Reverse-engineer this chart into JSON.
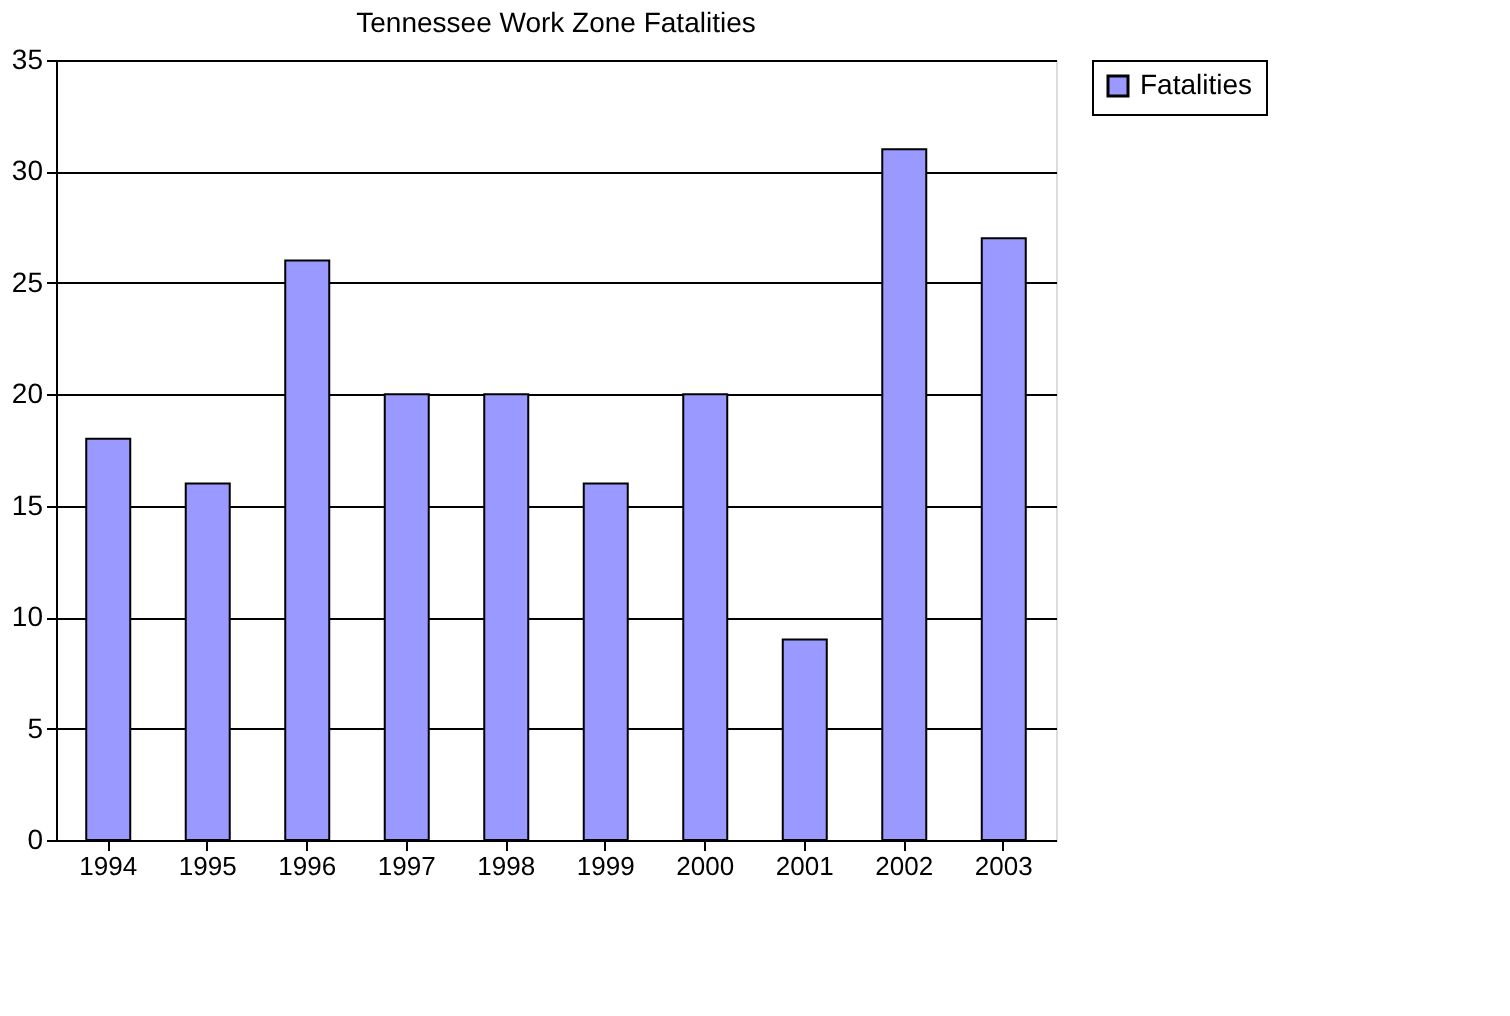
{
  "chart_data": {
    "type": "bar",
    "title": "Tennessee Work Zone Fatalities",
    "categories": [
      "1994",
      "1995",
      "1996",
      "1997",
      "1998",
      "1999",
      "2000",
      "2001",
      "2002",
      "2003"
    ],
    "series": [
      {
        "name": "Fatalities",
        "color": "#9999ff",
        "values": [
          18,
          16,
          26,
          20,
          20,
          16,
          20,
          9,
          31,
          27
        ]
      }
    ],
    "ylim": [
      0,
      35
    ],
    "yticks": [
      0,
      5,
      10,
      15,
      20,
      25,
      30,
      35
    ],
    "grid": "y",
    "legend": "right"
  }
}
